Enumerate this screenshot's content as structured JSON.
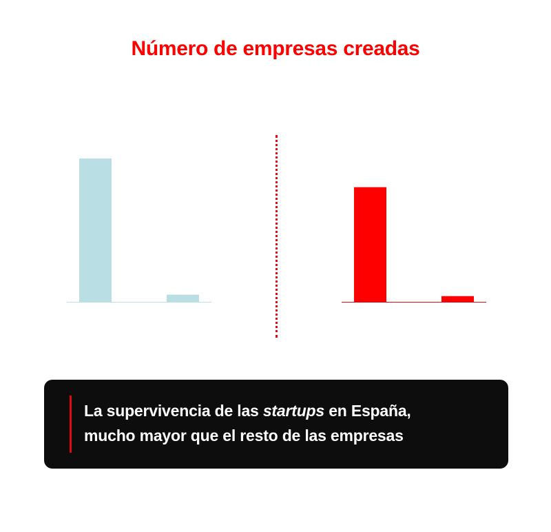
{
  "title": "Número de empresas creadas",
  "caption": {
    "part1": "La supervivencia de las ",
    "italic": "startups",
    "part2": " en España,",
    "line2": "mucho mayor que el resto de las empresas"
  },
  "colors": {
    "title": "#ff0000",
    "panel_left_bars": "#b9dfe4",
    "panel_right_bars": "#ff0000",
    "divider": "#e30613",
    "caption_bg": "#0d0d0d"
  },
  "chart_data": [
    {
      "type": "bar",
      "title": "",
      "categories": [
        "",
        ""
      ],
      "values": [
        100,
        5
      ],
      "ylim": [
        0,
        100
      ],
      "grid": false
    },
    {
      "type": "bar",
      "title": "",
      "categories": [
        "",
        ""
      ],
      "values": [
        80,
        4
      ],
      "ylim": [
        0,
        100
      ],
      "grid": false
    }
  ]
}
